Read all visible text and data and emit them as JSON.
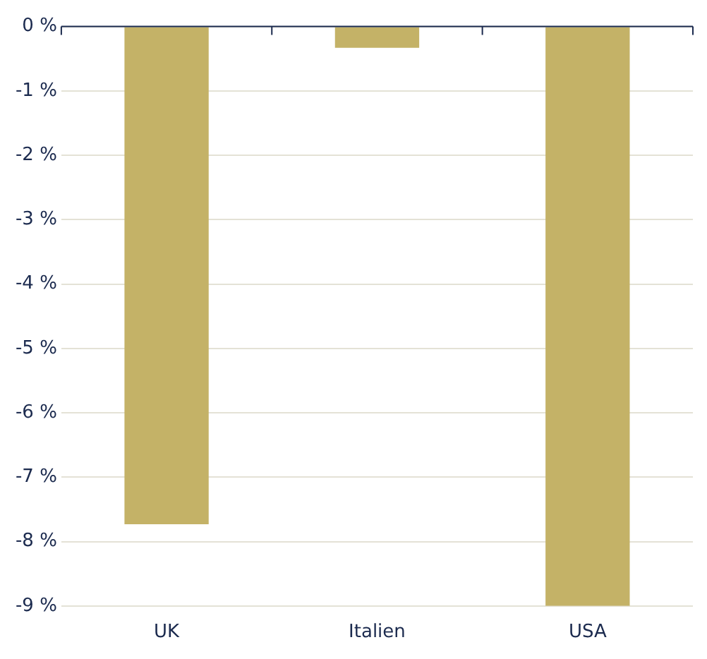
{
  "chart_data": {
    "type": "bar",
    "categories": [
      "UK",
      "Italien",
      "USA"
    ],
    "values": [
      -7.73,
      -0.33,
      -9.0
    ],
    "color": "#c4b267",
    "ylim": [
      -9,
      0
    ],
    "yticks": [
      {
        "value": 0,
        "label": "0 %"
      },
      {
        "value": -1,
        "label": "-1 %"
      },
      {
        "value": -2,
        "label": "-2 %"
      },
      {
        "value": -3,
        "label": "-3 %"
      },
      {
        "value": -4,
        "label": "-4 %"
      },
      {
        "value": -5,
        "label": "-5 %"
      },
      {
        "value": -6,
        "label": "-6 %"
      },
      {
        "value": -7,
        "label": "-7 %"
      },
      {
        "value": -8,
        "label": "-8 %"
      },
      {
        "value": -9,
        "label": "-9 %"
      }
    ],
    "grid": "y",
    "legend": false
  }
}
